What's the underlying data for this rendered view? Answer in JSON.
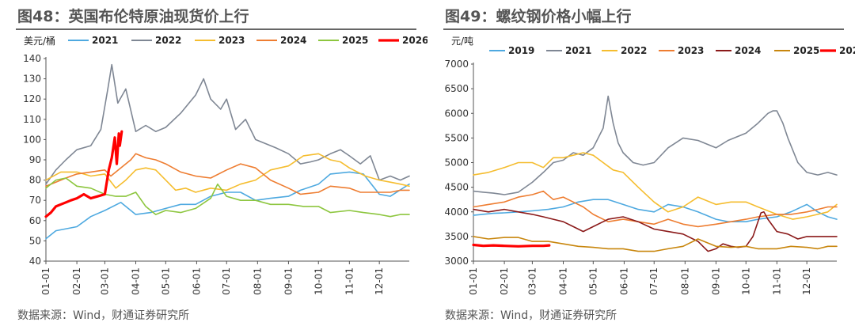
{
  "charts": [
    {
      "figure_title": "图48：英国布伦特原油现货价上行",
      "source": "数据来源：Wind，财通证券研究所"
    },
    {
      "figure_title": "图49：螺纹钢价格小幅上行",
      "source": "数据来源：Wind，财通证券研究所"
    }
  ],
  "chart_data": [
    {
      "type": "line",
      "title": "图48：英国布伦特原油现货价上行",
      "unit_label": "美元/桶",
      "ylim": [
        40,
        140
      ],
      "y_ticks": [
        "40",
        "50",
        "60",
        "70",
        "80",
        "90",
        "100",
        "110",
        "120",
        "130",
        "140"
      ],
      "x_ticks": [
        "01-01",
        "02-01",
        "03-01",
        "04-01",
        "05-01",
        "06-01",
        "07-01",
        "08-01",
        "09-01",
        "10-01",
        "11-01",
        "12-01"
      ],
      "grid": false,
      "legend_position": "top",
      "series": [
        {
          "name": "2021",
          "color": "#4EA9E0",
          "days": [
            0,
            10,
            31,
            45,
            59,
            75,
            90,
            105,
            120,
            135,
            150,
            165,
            181,
            195,
            210,
            225,
            243,
            255,
            273,
            285,
            304,
            318,
            334,
            345,
            364
          ],
          "values": [
            51,
            55,
            57,
            62,
            65,
            69,
            63,
            64,
            66,
            68,
            68,
            72,
            74,
            74,
            70,
            71,
            72,
            75,
            78,
            83,
            84,
            83,
            73,
            72,
            78
          ]
        },
        {
          "name": "2022",
          "color": "#7F8794",
          "days": [
            0,
            10,
            20,
            31,
            45,
            55,
            62,
            66,
            72,
            80,
            90,
            100,
            110,
            120,
            135,
            150,
            158,
            165,
            175,
            181,
            190,
            200,
            210,
            220,
            230,
            243,
            255,
            265,
            273,
            285,
            295,
            304,
            315,
            325,
            334,
            345,
            355,
            364
          ],
          "values": [
            78,
            85,
            90,
            95,
            97,
            105,
            125,
            137,
            118,
            125,
            104,
            107,
            104,
            106,
            113,
            122,
            130,
            120,
            115,
            120,
            105,
            110,
            100,
            98,
            96,
            93,
            88,
            89,
            90,
            93,
            95,
            92,
            88,
            92,
            80,
            82,
            80,
            82
          ]
        },
        {
          "name": "2023",
          "color": "#F5BD2F",
          "days": [
            0,
            15,
            31,
            45,
            59,
            70,
            80,
            90,
            100,
            110,
            120,
            130,
            140,
            150,
            165,
            181,
            195,
            210,
            225,
            243,
            258,
            273,
            285,
            295,
            304,
            320,
            334,
            345,
            355,
            364
          ],
          "values": [
            80,
            84,
            84,
            82,
            83,
            76,
            80,
            85,
            86,
            85,
            80,
            75,
            76,
            74,
            76,
            75,
            78,
            80,
            85,
            87,
            92,
            93,
            90,
            89,
            86,
            82,
            80,
            79,
            78,
            77
          ]
        },
        {
          "name": "2024",
          "color": "#EE7D31",
          "days": [
            0,
            10,
            20,
            31,
            45,
            59,
            65,
            75,
            85,
            90,
            100,
            110,
            120,
            135,
            150,
            165,
            181,
            195,
            210,
            225,
            243,
            255,
            273,
            285,
            304,
            315,
            334,
            345,
            355,
            364
          ],
          "values": [
            77,
            79,
            81,
            83,
            84,
            85,
            82,
            86,
            90,
            93,
            91,
            90,
            88,
            84,
            82,
            81,
            85,
            88,
            86,
            80,
            76,
            73,
            74,
            77,
            76,
            74,
            74,
            74,
            75,
            75
          ]
        },
        {
          "name": "2025",
          "color": "#8DC63F",
          "days": [
            0,
            10,
            20,
            31,
            45,
            59,
            70,
            80,
            90,
            100,
            110,
            120,
            135,
            150,
            165,
            172,
            181,
            195,
            210,
            225,
            243,
            258,
            273,
            285,
            304,
            318,
            334,
            345,
            355,
            364
          ],
          "values": [
            76,
            80,
            81,
            77,
            76,
            73,
            72,
            72,
            74,
            67,
            63,
            65,
            64,
            66,
            71,
            78,
            72,
            70,
            70,
            68,
            68,
            67,
            67,
            64,
            65,
            64,
            63,
            62,
            63,
            63
          ]
        },
        {
          "name": "2026",
          "color": "#FF0000",
          "days": [
            0,
            5,
            10,
            15,
            20,
            25,
            31,
            38,
            45,
            52,
            59,
            63,
            66,
            69,
            71,
            73,
            74,
            76
          ],
          "values": [
            62,
            64,
            67,
            68,
            69,
            70,
            71,
            73,
            71,
            72,
            73,
            85,
            91,
            101,
            88,
            103,
            97,
            104
          ]
        }
      ]
    },
    {
      "type": "line",
      "title": "图49：螺纹钢价格小幅上行",
      "unit_label": "元/吨",
      "ylim": [
        3000,
        7000
      ],
      "y_ticks": [
        "3000",
        "3500",
        "4000",
        "4500",
        "5000",
        "5500",
        "6000",
        "6500",
        "7000"
      ],
      "x_ticks": [
        "01-01",
        "02-01",
        "03-01",
        "04-01",
        "05-01",
        "06-01",
        "07-01",
        "08-01",
        "09-01",
        "10-01",
        "11-01",
        "12-01"
      ],
      "grid": false,
      "legend_position": "top",
      "series": [
        {
          "name": "2019",
          "color": "#4EA9E0",
          "days": [
            0,
            20,
            31,
            45,
            59,
            75,
            90,
            105,
            120,
            135,
            150,
            165,
            181,
            195,
            210,
            225,
            243,
            255,
            273,
            285,
            304,
            318,
            334,
            345,
            355,
            364
          ],
          "values": [
            3930,
            3970,
            3980,
            4000,
            4020,
            4050,
            4100,
            4200,
            4250,
            4250,
            4150,
            4050,
            4000,
            4150,
            4100,
            4000,
            3850,
            3800,
            3800,
            3850,
            3900,
            4000,
            4150,
            4000,
            3900,
            3850
          ]
        },
        {
          "name": "2021",
          "color": "#7F8794",
          "days": [
            0,
            10,
            20,
            31,
            45,
            59,
            70,
            80,
            90,
            100,
            110,
            120,
            130,
            135,
            140,
            145,
            150,
            160,
            170,
            181,
            195,
            210,
            225,
            243,
            255,
            273,
            285,
            295,
            300,
            304,
            310,
            315,
            325,
            334,
            345,
            355,
            364
          ],
          "values": [
            4420,
            4400,
            4380,
            4350,
            4400,
            4600,
            4800,
            5000,
            5050,
            5200,
            5150,
            5300,
            5700,
            6350,
            5800,
            5400,
            5200,
            5000,
            4950,
            5000,
            5300,
            5500,
            5450,
            5300,
            5450,
            5600,
            5800,
            6000,
            6050,
            6050,
            5800,
            5500,
            5000,
            4800,
            4750,
            4800,
            4750
          ]
        },
        {
          "name": "2022",
          "color": "#F5BD2F",
          "days": [
            0,
            15,
            31,
            45,
            59,
            70,
            80,
            90,
            100,
            110,
            120,
            130,
            140,
            150,
            165,
            181,
            195,
            210,
            225,
            243,
            258,
            273,
            285,
            304,
            320,
            334,
            345,
            355,
            364
          ],
          "values": [
            4750,
            4800,
            4900,
            5000,
            5000,
            4900,
            5100,
            5100,
            5150,
            5200,
            5150,
            5000,
            4850,
            4800,
            4500,
            4200,
            4000,
            4100,
            4300,
            4150,
            4200,
            4200,
            4100,
            3950,
            3850,
            3900,
            3950,
            4000,
            4150
          ]
        },
        {
          "name": "2023",
          "color": "#EE7D31",
          "days": [
            0,
            15,
            31,
            45,
            59,
            70,
            80,
            90,
            100,
            110,
            120,
            135,
            150,
            165,
            181,
            195,
            210,
            225,
            243,
            258,
            273,
            285,
            304,
            318,
            334,
            345,
            355,
            364
          ],
          "values": [
            4100,
            4150,
            4200,
            4300,
            4350,
            4420,
            4250,
            4300,
            4200,
            4100,
            3950,
            3800,
            3850,
            3800,
            3750,
            3850,
            3750,
            3700,
            3750,
            3800,
            3850,
            3900,
            3950,
            3950,
            4000,
            4050,
            4100,
            4100
          ]
        },
        {
          "name": "2024",
          "color": "#8B1A1A",
          "days": [
            0,
            15,
            31,
            45,
            59,
            70,
            80,
            90,
            100,
            110,
            120,
            135,
            150,
            165,
            181,
            195,
            210,
            225,
            235,
            243,
            250,
            258,
            265,
            273,
            280,
            285,
            288,
            291,
            295,
            304,
            315,
            325,
            334,
            345,
            355,
            364
          ],
          "values": [
            4050,
            4000,
            4050,
            4000,
            3950,
            3900,
            3850,
            3800,
            3700,
            3600,
            3700,
            3850,
            3900,
            3800,
            3650,
            3600,
            3550,
            3400,
            3200,
            3250,
            3350,
            3300,
            3280,
            3300,
            3500,
            3800,
            3980,
            4000,
            3850,
            3600,
            3550,
            3450,
            3500,
            3500,
            3500,
            3500
          ]
        },
        {
          "name": "2025",
          "color": "#C8860D",
          "days": [
            0,
            15,
            31,
            45,
            59,
            75,
            90,
            105,
            120,
            135,
            150,
            165,
            181,
            195,
            210,
            225,
            243,
            258,
            273,
            285,
            304,
            318,
            334,
            345,
            355,
            364
          ],
          "values": [
            3500,
            3450,
            3480,
            3480,
            3400,
            3400,
            3350,
            3300,
            3280,
            3250,
            3250,
            3200,
            3200,
            3250,
            3300,
            3450,
            3300,
            3280,
            3300,
            3250,
            3250,
            3300,
            3280,
            3250,
            3300,
            3300
          ]
        },
        {
          "name": "202",
          "color": "#FF0000",
          "days": [
            0,
            10,
            20,
            31,
            45,
            59,
            70,
            76
          ],
          "values": [
            3330,
            3310,
            3320,
            3310,
            3300,
            3310,
            3310,
            3320
          ]
        }
      ]
    }
  ]
}
